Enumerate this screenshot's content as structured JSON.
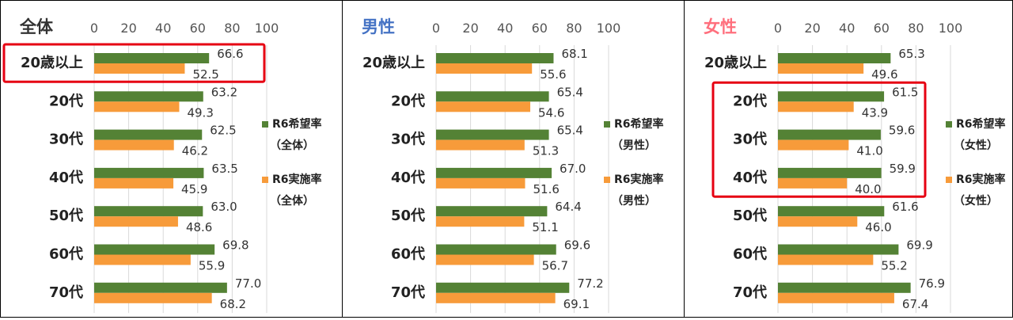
{
  "colors": {
    "wish": "#548235",
    "impl": "#f79b3a",
    "highlight": "#e60012"
  },
  "chart_data": [
    {
      "type": "bar",
      "orientation": "horizontal",
      "title": "全体",
      "title_color": "#333333",
      "xlim": [
        0,
        100
      ],
      "xticks": [
        "0",
        "20",
        "40",
        "60",
        "80",
        "100"
      ],
      "categories": [
        "20歳以上",
        "20代",
        "30代",
        "40代",
        "50代",
        "60代",
        "70代"
      ],
      "series": [
        {
          "name": "R6希望率（全体）",
          "name_line1": "R6希望率",
          "name_line2": "（全体）",
          "color": "#548235",
          "values": [
            66.6,
            63.2,
            62.5,
            63.5,
            63.0,
            69.8,
            77.0
          ]
        },
        {
          "name": "R6実施率（全体）",
          "name_line1": "R6実施率",
          "name_line2": "（全体）",
          "color": "#f79b3a",
          "values": [
            52.5,
            49.3,
            46.2,
            45.9,
            48.6,
            55.9,
            68.2
          ]
        }
      ],
      "value_labels": [
        [
          "66.6",
          "63.2",
          "62.5",
          "63.5",
          "63.0",
          "69.8",
          "77.0"
        ],
        [
          "52.5",
          "49.3",
          "46.2",
          "45.9",
          "48.6",
          "55.9",
          "68.2"
        ]
      ],
      "highlight": {
        "from": 0,
        "to": 0
      },
      "grid": true,
      "legend": "right"
    },
    {
      "type": "bar",
      "orientation": "horizontal",
      "title": "男性",
      "title_color": "#4472c4",
      "xlim": [
        0,
        100
      ],
      "xticks": [
        "0",
        "20",
        "40",
        "60",
        "80",
        "100"
      ],
      "categories": [
        "20歳以上",
        "20代",
        "30代",
        "40代",
        "50代",
        "60代",
        "70代"
      ],
      "series": [
        {
          "name": "R6希望率（男性）",
          "name_line1": "R6希望率",
          "name_line2": "（男性）",
          "color": "#548235",
          "values": [
            68.1,
            65.4,
            65.4,
            67.0,
            64.4,
            69.6,
            77.2
          ]
        },
        {
          "name": "R6実施率（男性）",
          "name_line1": "R6実施率",
          "name_line2": "（男性）",
          "color": "#f79b3a",
          "values": [
            55.6,
            54.6,
            51.3,
            51.6,
            51.1,
            56.7,
            69.1
          ]
        }
      ],
      "value_labels": [
        [
          "68.1",
          "65.4",
          "65.4",
          "67.0",
          "64.4",
          "69.6",
          "77.2"
        ],
        [
          "55.6",
          "54.6",
          "51.3",
          "51.6",
          "51.1",
          "56.7",
          "69.1"
        ]
      ],
      "grid": true,
      "legend": "right"
    },
    {
      "type": "bar",
      "orientation": "horizontal",
      "title": "女性",
      "title_color": "#ff6f7d",
      "xlim": [
        0,
        100
      ],
      "xticks": [
        "0",
        "20",
        "40",
        "60",
        "80",
        "100"
      ],
      "categories": [
        "20歳以上",
        "20代",
        "30代",
        "40代",
        "50代",
        "60代",
        "70代"
      ],
      "series": [
        {
          "name": "R6希望率（女性）",
          "name_line1": "R6希望率",
          "name_line2": "（女性）",
          "color": "#548235",
          "values": [
            65.3,
            61.5,
            59.6,
            59.9,
            61.6,
            69.9,
            76.9
          ]
        },
        {
          "name": "R6実施率（女性）",
          "name_line1": "R6実施率",
          "name_line2": "（女性）",
          "color": "#f79b3a",
          "values": [
            49.6,
            43.9,
            41.0,
            40.0,
            46.0,
            55.2,
            67.4
          ]
        }
      ],
      "value_labels": [
        [
          "65.3",
          "61.5",
          "59.6",
          "59.9",
          "61.6",
          "69.9",
          "76.9"
        ],
        [
          "49.6",
          "43.9",
          "41.0",
          "40.0",
          "46.0",
          "55.2",
          "67.4"
        ]
      ],
      "highlight": {
        "from": 1,
        "to": 3
      },
      "grid": true,
      "legend": "right"
    }
  ]
}
